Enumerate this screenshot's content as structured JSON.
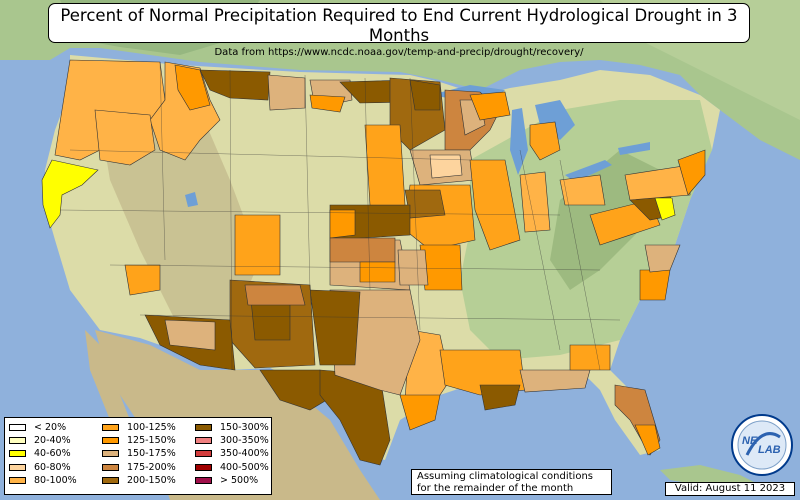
{
  "title": "Percent of Normal Precipitation Required to End Current Hydrological Drought in 3 Months",
  "subtitle": "Data from https://www.ncdc.noaa.gov/temp-and-precip/drought/recovery/",
  "legend": [
    {
      "label": "< 20%",
      "color": "#ffffff"
    },
    {
      "label": "20-40%",
      "color": "#ffffc0"
    },
    {
      "label": "40-60%",
      "color": "#ffff00"
    },
    {
      "label": "60-80%",
      "color": "#fdd49e"
    },
    {
      "label": "80-100%",
      "color": "#ffb347"
    },
    {
      "label": "100-125%",
      "color": "#ffa31a"
    },
    {
      "label": "125-150%",
      "color": "#ff9900"
    },
    {
      "label": "150-175%",
      "color": "#ddb27c"
    },
    {
      "label": "175-200%",
      "color": "#cd853f"
    },
    {
      "label": "200-150%",
      "color": "#a0690f"
    },
    {
      "label": "150-300%",
      "color": "#8b5a00"
    },
    {
      "label": "300-350%",
      "color": "#f08080"
    },
    {
      "label": "350-400%",
      "color": "#d23c3c"
    },
    {
      "label": "400-500%",
      "color": "#a00000"
    },
    {
      "label": "> 500%",
      "color": "#a0104a"
    }
  ],
  "note_line1": "Assuming climatological conditions",
  "note_line2": "for the remainder of the month",
  "valid": "Valid: August 11 2023",
  "logo_text_1": "NE",
  "logo_text_2": "LAB",
  "colors": {
    "ocean": "#8fb1dc",
    "land": "#dcdca8",
    "terrain_green": "#9cbf85",
    "lake": "#6e9fd6"
  }
}
